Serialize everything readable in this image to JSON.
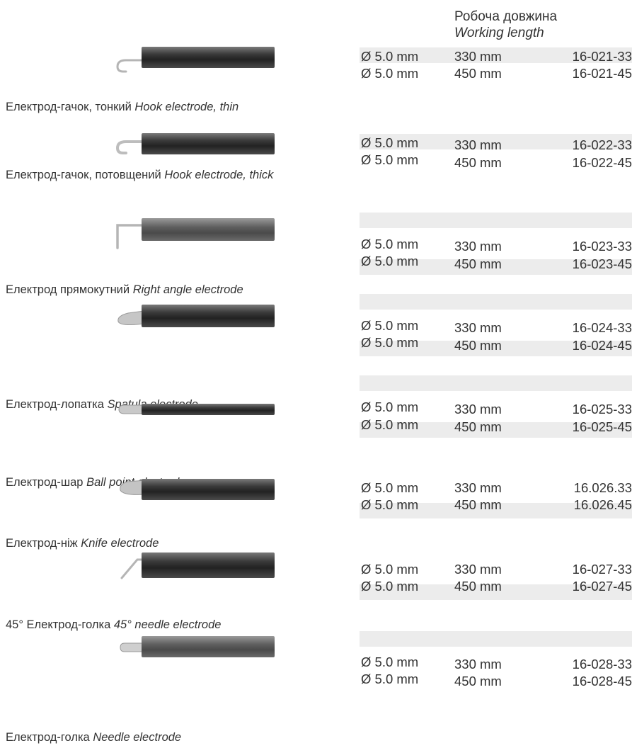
{
  "header": {
    "working_length_uk": "Робоча довжина",
    "working_length_en": "Working length"
  },
  "products": [
    {
      "caption_uk": "Електрод-гачок, тонкий",
      "caption_en": "Hook electrode, thin",
      "tip_icon": "thin-hook-tip-icon",
      "rows": [
        {
          "diameter": "Ø 5.0 mm",
          "length": "330 mm",
          "code": "16-021-33"
        },
        {
          "diameter": "Ø 5.0 mm",
          "length": "450 mm",
          "code": "16-021-45"
        }
      ]
    },
    {
      "caption_uk": "Електрод-гачок, потовщений",
      "caption_en": "Hook electrode, thick",
      "tip_icon": "thick-hook-tip-icon",
      "rows": [
        {
          "diameter": "Ø 5.0 mm",
          "length": "330 mm",
          "code": "16-022-33"
        },
        {
          "diameter": "Ø 5.0 mm",
          "length": "450 mm",
          "code": "16-022-45"
        }
      ]
    },
    {
      "caption_uk": "Електрод прямокутний",
      "caption_en": "Right angle electrode",
      "tip_icon": "right-angle-tip-icon",
      "rows": [
        {
          "diameter": "Ø 5.0 mm",
          "length": "330 mm",
          "code": "16-023-33"
        },
        {
          "diameter": "Ø 5.0 mm",
          "length": "450 mm",
          "code": "16-023-45"
        }
      ]
    },
    {
      "caption_uk": "Електрод-лопатка",
      "caption_en": "Spatula electrode",
      "tip_icon": "spatula-tip-icon",
      "rows": [
        {
          "diameter": "Ø 5.0 mm",
          "length": "330 mm",
          "code": "16-024-33"
        },
        {
          "diameter": "Ø 5.0 mm",
          "length": "450 mm",
          "code": "16-024-45"
        }
      ]
    },
    {
      "caption_uk": "Електрод-шар",
      "caption_en": "Ball point electrode",
      "tip_icon": "ball-point-tip-icon",
      "rows": [
        {
          "diameter": "Ø 5.0 mm",
          "length": "330 mm",
          "code": "16-025-33"
        },
        {
          "diameter": "Ø 5.0 mm",
          "length": "450 mm",
          "code": "16-025-45"
        }
      ]
    },
    {
      "caption_uk": "Електрод-ніж",
      "caption_en": "Knife electrode",
      "tip_icon": "knife-tip-icon",
      "rows": [
        {
          "diameter": "Ø 5.0 mm",
          "length": "330 mm",
          "code": "16.026.33"
        },
        {
          "diameter": "Ø 5.0 mm",
          "length": "450 mm",
          "code": "16.026.45"
        }
      ]
    },
    {
      "caption_uk": "45° Електрод-голка",
      "caption_en": "45° needle electrode",
      "tip_icon": "needle-45-tip-icon",
      "rows": [
        {
          "diameter": "Ø 5.0 mm",
          "length": "330 mm",
          "code": "16-027-33"
        },
        {
          "diameter": "Ø 5.0 mm",
          "length": "450 mm",
          "code": "16-027-45"
        }
      ]
    },
    {
      "caption_uk": "Електрод-голка",
      "caption_en": "Needle electrode",
      "tip_icon": "needle-tip-icon",
      "rows": [
        {
          "diameter": "Ø 5.0 mm",
          "length": "330 mm",
          "code": "16-028-33"
        },
        {
          "diameter": "Ø 5.0 mm",
          "length": "450 mm",
          "code": "16-028-45"
        }
      ]
    }
  ]
}
